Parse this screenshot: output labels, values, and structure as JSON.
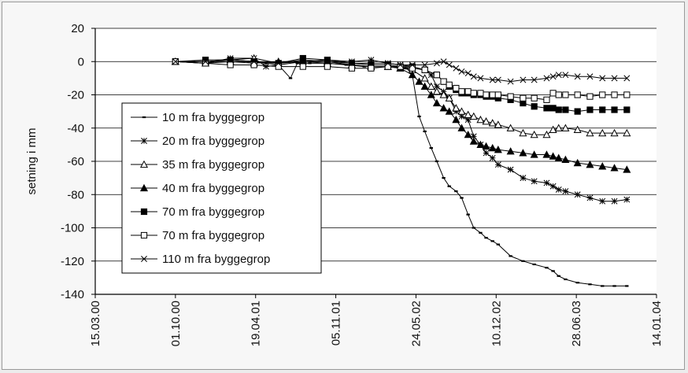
{
  "chart_data": {
    "type": "line",
    "title": "",
    "xlabel": "",
    "ylabel": "setning i mm",
    "ylim": [
      -140,
      20
    ],
    "yticks": [
      20,
      0,
      -20,
      -40,
      -60,
      -80,
      -100,
      -120,
      -140
    ],
    "xticks": [
      "15.03.00",
      "01.10.00",
      "19.04.01",
      "05.11.01",
      "24.05.02",
      "10.12.02",
      "28.06.03",
      "14.01.04"
    ],
    "xlim": [
      "15.03.00",
      "14.01.04"
    ],
    "grid": "horizontal",
    "legend_position": "left-middle",
    "series": [
      {
        "name": "10 m fra byggegrop",
        "marker": "small-dash",
        "points": [
          [
            "01.10.00",
            0
          ],
          [
            "15.11.00",
            0
          ],
          [
            "01.01.01",
            0
          ],
          [
            "15.02.01",
            0
          ],
          [
            "01.04.01",
            0
          ],
          [
            "15.05.01",
            -1
          ],
          [
            "15.06.01",
            -2
          ],
          [
            "15.07.01",
            -10
          ],
          [
            "01.08.01",
            -1
          ],
          [
            "01.09.01",
            -1
          ],
          [
            "15.10.01",
            -1
          ],
          [
            "01.12.01",
            -2
          ],
          [
            "15.01.02",
            -3
          ],
          [
            "15.03.02",
            -3
          ],
          [
            "01.05.02",
            -4
          ],
          [
            "15.05.02",
            -8
          ],
          [
            "01.06.02",
            -33
          ],
          [
            "15.06.02",
            -42
          ],
          [
            "01.07.02",
            -52
          ],
          [
            "15.07.02",
            -60
          ],
          [
            "01.08.02",
            -70
          ],
          [
            "15.08.02",
            -75
          ],
          [
            "01.09.02",
            -78
          ],
          [
            "15.09.02",
            -82
          ],
          [
            "01.10.02",
            -92
          ],
          [
            "15.10.02",
            -100
          ],
          [
            "01.11.02",
            -103
          ],
          [
            "15.11.02",
            -106
          ],
          [
            "01.12.02",
            -108
          ],
          [
            "15.12.02",
            -110
          ],
          [
            "15.01.03",
            -117
          ],
          [
            "15.02.03",
            -120
          ],
          [
            "15.03.03",
            -122
          ],
          [
            "15.04.03",
            -124
          ],
          [
            "01.05.03",
            -126
          ],
          [
            "15.05.03",
            -129
          ],
          [
            "01.06.03",
            -131
          ],
          [
            "01.07.03",
            -133
          ],
          [
            "01.08.03",
            -134
          ],
          [
            "01.09.03",
            -135
          ],
          [
            "01.10.03",
            -135
          ],
          [
            "01.11.03",
            -135
          ]
        ]
      },
      {
        "name": "20 m fra byggegrop",
        "marker": "asterisk",
        "points": [
          [
            "01.10.00",
            0
          ],
          [
            "15.12.00",
            -1
          ],
          [
            "15.02.01",
            2
          ],
          [
            "15.04.01",
            2
          ],
          [
            "15.05.01",
            -3
          ],
          [
            "15.06.01",
            -2
          ],
          [
            "15.08.01",
            0
          ],
          [
            "15.10.01",
            1
          ],
          [
            "15.12.01",
            0
          ],
          [
            "01.02.02",
            1
          ],
          [
            "15.03.02",
            -1
          ],
          [
            "15.04.02",
            -2
          ],
          [
            "15.05.02",
            -3
          ],
          [
            "15.06.02",
            -5
          ],
          [
            "01.07.02",
            -8
          ],
          [
            "15.07.02",
            -15
          ],
          [
            "01.08.02",
            -18
          ],
          [
            "15.08.02",
            -22
          ],
          [
            "01.09.02",
            -30
          ],
          [
            "15.09.02",
            -33
          ],
          [
            "01.10.02",
            -35
          ],
          [
            "15.10.02",
            -45
          ],
          [
            "01.11.02",
            -50
          ],
          [
            "15.11.02",
            -55
          ],
          [
            "01.12.02",
            -58
          ],
          [
            "15.12.02",
            -62
          ],
          [
            "15.01.03",
            -65
          ],
          [
            "15.02.03",
            -70
          ],
          [
            "15.03.03",
            -72
          ],
          [
            "15.04.03",
            -73
          ],
          [
            "01.05.03",
            -75
          ],
          [
            "15.05.03",
            -77
          ],
          [
            "01.06.03",
            -78
          ],
          [
            "01.07.03",
            -80
          ],
          [
            "01.08.03",
            -82
          ],
          [
            "01.09.03",
            -84
          ],
          [
            "01.10.03",
            -84
          ],
          [
            "01.11.03",
            -83
          ]
        ]
      },
      {
        "name": "35 m fra byggegrop",
        "marker": "open-triangle",
        "points": [
          [
            "01.10.00",
            0
          ],
          [
            "15.12.00",
            0
          ],
          [
            "15.02.01",
            1
          ],
          [
            "15.04.01",
            2
          ],
          [
            "15.06.01",
            -1
          ],
          [
            "15.08.01",
            1
          ],
          [
            "15.10.01",
            0
          ],
          [
            "15.12.01",
            -2
          ],
          [
            "01.02.02",
            -3
          ],
          [
            "15.03.02",
            -3
          ],
          [
            "15.04.02",
            -4
          ],
          [
            "15.05.02",
            -5
          ],
          [
            "15.06.02",
            -10
          ],
          [
            "01.07.02",
            -15
          ],
          [
            "15.07.02",
            -18
          ],
          [
            "01.08.02",
            -20
          ],
          [
            "15.08.02",
            -22
          ],
          [
            "01.09.02",
            -28
          ],
          [
            "15.09.02",
            -30
          ],
          [
            "01.10.02",
            -32
          ],
          [
            "15.10.02",
            -33
          ],
          [
            "01.11.02",
            -35
          ],
          [
            "15.11.02",
            -36
          ],
          [
            "01.12.02",
            -37
          ],
          [
            "15.12.02",
            -38
          ],
          [
            "15.01.03",
            -40
          ],
          [
            "15.02.03",
            -43
          ],
          [
            "15.03.03",
            -44
          ],
          [
            "15.04.03",
            -44
          ],
          [
            "01.05.03",
            -41
          ],
          [
            "15.05.03",
            -40
          ],
          [
            "01.06.03",
            -40
          ],
          [
            "01.07.03",
            -41
          ],
          [
            "01.08.03",
            -43
          ],
          [
            "01.09.03",
            -43
          ],
          [
            "01.10.03",
            -43
          ],
          [
            "01.11.03",
            -43
          ]
        ]
      },
      {
        "name": "40 m fra byggegrop",
        "marker": "filled-triangle",
        "points": [
          [
            "01.10.00",
            0
          ],
          [
            "15.12.00",
            -1
          ],
          [
            "15.02.01",
            0
          ],
          [
            "15.04.01",
            -1
          ],
          [
            "15.06.01",
            0
          ],
          [
            "15.08.01",
            0
          ],
          [
            "15.10.01",
            -1
          ],
          [
            "15.12.01",
            -2
          ],
          [
            "01.02.02",
            -3
          ],
          [
            "15.03.02",
            -3
          ],
          [
            "15.04.02",
            -4
          ],
          [
            "15.05.02",
            -8
          ],
          [
            "01.06.02",
            -12
          ],
          [
            "15.06.02",
            -15
          ],
          [
            "01.07.02",
            -20
          ],
          [
            "15.07.02",
            -25
          ],
          [
            "01.08.02",
            -28
          ],
          [
            "15.08.02",
            -30
          ],
          [
            "01.09.02",
            -35
          ],
          [
            "15.09.02",
            -40
          ],
          [
            "01.10.02",
            -44
          ],
          [
            "15.10.02",
            -48
          ],
          [
            "01.11.02",
            -50
          ],
          [
            "15.11.02",
            -51
          ],
          [
            "01.12.02",
            -52
          ],
          [
            "15.12.02",
            -53
          ],
          [
            "15.01.03",
            -54
          ],
          [
            "15.02.03",
            -55
          ],
          [
            "15.03.03",
            -56
          ],
          [
            "15.04.03",
            -56
          ],
          [
            "01.05.03",
            -57
          ],
          [
            "15.05.03",
            -58
          ],
          [
            "01.06.03",
            -59
          ],
          [
            "01.07.03",
            -61
          ],
          [
            "01.08.03",
            -62
          ],
          [
            "01.09.03",
            -63
          ],
          [
            "01.10.03",
            -64
          ],
          [
            "01.11.03",
            -65
          ]
        ]
      },
      {
        "name": "70 m fra byggegrop",
        "marker": "filled-square",
        "points": [
          [
            "01.10.00",
            0
          ],
          [
            "15.12.00",
            1
          ],
          [
            "15.02.01",
            1
          ],
          [
            "15.04.01",
            0
          ],
          [
            "15.06.01",
            -1
          ],
          [
            "15.08.01",
            2
          ],
          [
            "15.10.01",
            1
          ],
          [
            "15.12.01",
            -1
          ],
          [
            "01.02.02",
            -2
          ],
          [
            "15.03.02",
            -2
          ],
          [
            "15.04.02",
            -3
          ],
          [
            "15.05.02",
            -3
          ],
          [
            "15.06.02",
            -5
          ],
          [
            "15.07.02",
            -8
          ],
          [
            "01.08.02",
            -12
          ],
          [
            "15.08.02",
            -15
          ],
          [
            "01.09.02",
            -17
          ],
          [
            "15.09.02",
            -19
          ],
          [
            "01.10.02",
            -19
          ],
          [
            "15.10.02",
            -20
          ],
          [
            "01.11.02",
            -20
          ],
          [
            "15.11.02",
            -21
          ],
          [
            "01.12.02",
            -21
          ],
          [
            "15.12.02",
            -22
          ],
          [
            "15.01.03",
            -23
          ],
          [
            "15.02.03",
            -25
          ],
          [
            "15.03.03",
            -27
          ],
          [
            "15.04.03",
            -28
          ],
          [
            "01.05.03",
            -28
          ],
          [
            "15.05.03",
            -29
          ],
          [
            "01.06.03",
            -29
          ],
          [
            "01.07.03",
            -30
          ],
          [
            "01.08.03",
            -29
          ],
          [
            "01.09.03",
            -29
          ],
          [
            "01.10.03",
            -29
          ],
          [
            "01.11.03",
            -29
          ]
        ]
      },
      {
        "name": "70 m fra byggegrop",
        "marker": "open-square",
        "points": [
          [
            "01.10.00",
            0
          ],
          [
            "15.12.00",
            -1
          ],
          [
            "15.02.01",
            -2
          ],
          [
            "15.04.01",
            -2
          ],
          [
            "15.06.01",
            -3
          ],
          [
            "15.08.01",
            -3
          ],
          [
            "15.10.01",
            -3
          ],
          [
            "15.12.01",
            -4
          ],
          [
            "01.02.02",
            -4
          ],
          [
            "15.03.02",
            -3
          ],
          [
            "15.04.02",
            -3
          ],
          [
            "15.05.02",
            -4
          ],
          [
            "15.06.02",
            -5
          ],
          [
            "15.07.02",
            -8
          ],
          [
            "01.08.02",
            -12
          ],
          [
            "15.08.02",
            -14
          ],
          [
            "01.09.02",
            -16
          ],
          [
            "15.09.02",
            -18
          ],
          [
            "01.10.02",
            -18
          ],
          [
            "15.10.02",
            -19
          ],
          [
            "01.11.02",
            -19
          ],
          [
            "15.11.02",
            -20
          ],
          [
            "01.12.02",
            -20
          ],
          [
            "15.12.02",
            -20
          ],
          [
            "15.01.03",
            -21
          ],
          [
            "15.02.03",
            -22
          ],
          [
            "15.03.03",
            -22
          ],
          [
            "15.04.03",
            -23
          ],
          [
            "01.05.03",
            -19
          ],
          [
            "15.05.03",
            -20
          ],
          [
            "01.06.03",
            -20
          ],
          [
            "01.07.03",
            -20
          ],
          [
            "01.08.03",
            -21
          ],
          [
            "01.09.03",
            -20
          ],
          [
            "01.10.03",
            -20
          ],
          [
            "01.11.03",
            -20
          ]
        ]
      },
      {
        "name": "110 m fra byggegrop",
        "marker": "x-mark",
        "points": [
          [
            "01.10.00",
            0
          ],
          [
            "15.12.00",
            0
          ],
          [
            "15.02.01",
            1
          ],
          [
            "15.04.01",
            0
          ],
          [
            "15.06.01",
            -1
          ],
          [
            "15.08.01",
            0
          ],
          [
            "15.10.01",
            0
          ],
          [
            "15.12.01",
            -1
          ],
          [
            "01.02.02",
            -1
          ],
          [
            "15.03.02",
            -1
          ],
          [
            "15.04.02",
            -2
          ],
          [
            "15.05.02",
            -2
          ],
          [
            "15.06.02",
            -2
          ],
          [
            "15.07.02",
            -1
          ],
          [
            "01.08.02",
            0
          ],
          [
            "15.08.02",
            -2
          ],
          [
            "01.09.02",
            -4
          ],
          [
            "15.09.02",
            -6
          ],
          [
            "01.10.02",
            -7
          ],
          [
            "15.10.02",
            -9
          ],
          [
            "01.11.02",
            -10
          ],
          [
            "01.12.02",
            -11
          ],
          [
            "15.12.02",
            -11
          ],
          [
            "15.01.03",
            -12
          ],
          [
            "15.02.03",
            -11
          ],
          [
            "15.03.03",
            -11
          ],
          [
            "15.04.03",
            -10
          ],
          [
            "01.05.03",
            -9
          ],
          [
            "15.05.03",
            -8
          ],
          [
            "01.06.03",
            -8
          ],
          [
            "01.07.03",
            -9
          ],
          [
            "01.08.03",
            -9
          ],
          [
            "01.09.03",
            -10
          ],
          [
            "01.10.03",
            -10
          ],
          [
            "01.11.03",
            -10
          ]
        ]
      }
    ]
  }
}
